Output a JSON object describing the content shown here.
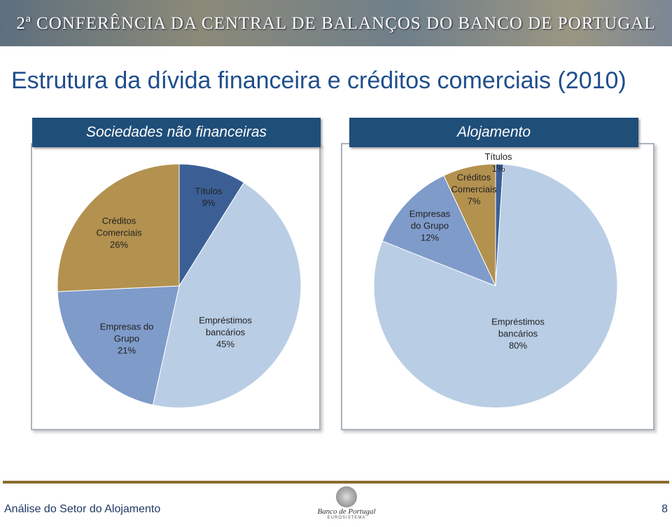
{
  "header": "2ª CONFERÊNCIA DA CENTRAL DE BALANÇOS DO BANCO DE PORTUGAL",
  "title": "Estrutura da dívida financeira e créditos comerciais (2010)",
  "chart_data": [
    {
      "type": "pie",
      "title": "Sociedades não financeiras",
      "categories": [
        "Títulos",
        "Empréstimos bancários",
        "Empresas do Grupo",
        "Créditos Comerciais"
      ],
      "values": [
        9,
        45,
        21,
        26
      ],
      "value_labels": [
        "9%",
        "45%",
        "21%",
        "26%"
      ],
      "colors": [
        "#3b5f95",
        "#b9cde5",
        "#7f9bca",
        "#b3914f"
      ]
    },
    {
      "type": "pie",
      "title": "Alojamento",
      "categories": [
        "Títulos",
        "Empréstimos bancários",
        "Empresas do Grupo",
        "Créditos Comerciais"
      ],
      "values": [
        1,
        80,
        12,
        7
      ],
      "value_labels": [
        "1%",
        "80%",
        "12%",
        "7%"
      ],
      "colors": [
        "#3b5f95",
        "#b9cde5",
        "#7f9bca",
        "#b3914f"
      ]
    }
  ],
  "footer": {
    "text": "Análise do Setor do Alojamento",
    "logo": "Banco de Portugal",
    "logo_sub": "EUROSISTEMA",
    "page": "8"
  }
}
